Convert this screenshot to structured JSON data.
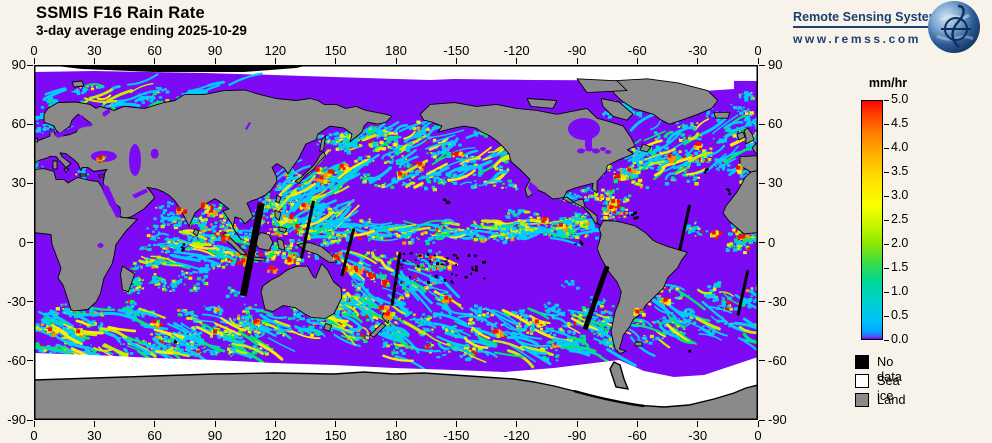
{
  "header": {
    "title": "SSMIS F16 Rain Rate",
    "subtitle": "3-day average ending 2025-10-29"
  },
  "logo": {
    "brand": "Remote Sensing Systems",
    "url": "www.remss.com",
    "brand_color": "#1d3f72"
  },
  "axes": {
    "lon_labels": [
      "0",
      "30",
      "60",
      "90",
      "120",
      "150",
      "180",
      "-150",
      "-120",
      "-90",
      "-60",
      "-30",
      "0"
    ],
    "lat_labels": [
      "90",
      "60",
      "30",
      "0",
      "-30",
      "-60",
      "-90"
    ]
  },
  "colorbar": {
    "unit": "mm/hr",
    "min": 0.0,
    "max": 5.0,
    "tick_labels": [
      "5.0",
      "4.5",
      "4.0",
      "3.5",
      "3.0",
      "2.5",
      "2.0",
      "1.5",
      "1.0",
      "0.5",
      "0.0"
    ],
    "stops": [
      [
        0,
        "#f80400"
      ],
      [
        6,
        "#ff4200"
      ],
      [
        14,
        "#ff8200"
      ],
      [
        24,
        "#ffb800"
      ],
      [
        34,
        "#ffe400"
      ],
      [
        44,
        "#fbff00"
      ],
      [
        52,
        "#c8f500"
      ],
      [
        60,
        "#8ce800"
      ],
      [
        68,
        "#3cdc46"
      ],
      [
        76,
        "#00d795"
      ],
      [
        84,
        "#00d2cd"
      ],
      [
        92,
        "#00c2f8"
      ],
      [
        97,
        "#00a6ff"
      ],
      [
        99,
        "#4b50ff"
      ],
      [
        100,
        "#7a00f0"
      ]
    ]
  },
  "legend": [
    {
      "label": "No data",
      "color": "#000000"
    },
    {
      "label": "Sea ice",
      "color": "#ffffff"
    },
    {
      "label": "Land",
      "color": "#8a8a8a"
    }
  ],
  "map": {
    "colors": {
      "ocean": "#7d0af5",
      "land": "#8a8a8a",
      "ice": "#ffffff",
      "nodata": "#000000",
      "frame": "#000000"
    },
    "rain_palette": [
      "#00ccff",
      "#00e673",
      "#c3f000",
      "#ffec00",
      "#ff9100",
      "#f50f00"
    ],
    "regions": [
      [
        135,
        2,
        275,
        11,
        420,
        2,
        1,
        0
      ],
      [
        325,
        2,
        360,
        9,
        90,
        1,
        0,
        0
      ],
      [
        340,
        -6,
        360,
        4,
        50,
        1,
        0,
        0
      ],
      [
        52,
        -10,
        100,
        6,
        200,
        1,
        1,
        -10
      ],
      [
        78,
        4,
        98,
        19,
        130,
        2,
        0,
        0
      ],
      [
        58,
        6,
        76,
        19,
        70,
        0,
        0,
        0
      ],
      [
        118,
        4,
        152,
        36,
        360,
        2,
        1,
        35
      ],
      [
        148,
        28,
        236,
        57,
        380,
        1,
        1,
        25
      ],
      [
        293,
        32,
        360,
        61,
        330,
        1,
        1,
        30
      ],
      [
        278,
        13,
        294,
        27,
        110,
        2,
        0,
        0
      ],
      [
        283,
        29,
        302,
        41,
        90,
        2,
        0,
        0
      ],
      [
        150,
        -32,
        205,
        -4,
        240,
        2,
        1,
        -35
      ],
      [
        14,
        -56,
        118,
        -33,
        470,
        1,
        1,
        -20
      ],
      [
        172,
        -58,
        287,
        -33,
        470,
        1,
        1,
        -20
      ],
      [
        295,
        -50,
        360,
        -21,
        240,
        1,
        1,
        -25
      ],
      [
        0,
        -55,
        20,
        -33,
        120,
        1,
        1,
        -20
      ],
      [
        148,
        -48,
        180,
        -27,
        180,
        2,
        1,
        -30
      ],
      [
        98,
        -12,
        152,
        4,
        200,
        2,
        0,
        0
      ],
      [
        0,
        31,
        37,
        45,
        34,
        1,
        0,
        0
      ],
      [
        150,
        44,
        200,
        61,
        130,
        1,
        0,
        0
      ],
      [
        5,
        68,
        110,
        80,
        150,
        0,
        1,
        10
      ],
      [
        230,
        4,
        280,
        15,
        170,
        1,
        0,
        0
      ],
      [
        0,
        55,
        16,
        74,
        60,
        0,
        0,
        0
      ],
      [
        266,
        51,
        283,
        62,
        40,
        0,
        0,
        0
      ],
      [
        285,
        63,
        305,
        75,
        60,
        0,
        0,
        0
      ],
      [
        140,
        45,
        156,
        58,
        40,
        0,
        0,
        0
      ],
      [
        262,
        19,
        279,
        29,
        40,
        0,
        0,
        0
      ],
      [
        335,
        62,
        360,
        78,
        70,
        0,
        0,
        0
      ],
      [
        115,
        -45,
        148,
        -33,
        90,
        1,
        1,
        -20
      ],
      [
        35,
        -30,
        55,
        -12,
        60,
        1,
        0,
        0
      ],
      [
        105,
        5,
        120,
        25,
        80,
        1,
        0,
        0
      ],
      [
        55,
        -25,
        100,
        -8,
        120,
        1,
        0,
        0
      ],
      [
        150,
        -33,
        285,
        -20,
        80,
        0,
        0,
        0
      ]
    ],
    "hotspots": [
      [
        287,
        18
      ],
      [
        288,
        21
      ],
      [
        290,
        34
      ],
      [
        296,
        37
      ],
      [
        128,
        13
      ],
      [
        134,
        19
      ],
      [
        131,
        8
      ],
      [
        143,
        33
      ],
      [
        147,
        36
      ],
      [
        153,
        39
      ],
      [
        141,
        37
      ],
      [
        160,
        -13
      ],
      [
        167,
        -16
      ],
      [
        174,
        -20
      ],
      [
        176,
        -36
      ],
      [
        173,
        -33
      ],
      [
        314,
        -29
      ],
      [
        33,
        43
      ],
      [
        262,
        9
      ],
      [
        254,
        12
      ],
      [
        88,
        16
      ],
      [
        84,
        19
      ],
      [
        72,
        17
      ],
      [
        8,
        -44
      ],
      [
        22,
        -45
      ],
      [
        104,
        -9
      ],
      [
        127,
        -9
      ],
      [
        150,
        -7
      ],
      [
        155,
        -13
      ],
      [
        316,
        44
      ],
      [
        330,
        50
      ],
      [
        350,
        38
      ],
      [
        182,
        35
      ],
      [
        192,
        40
      ],
      [
        210,
        45
      ],
      [
        352,
        3
      ],
      [
        338,
        5
      ],
      [
        300,
        -35
      ],
      [
        60,
        -40
      ],
      [
        90,
        -45
      ],
      [
        110,
        -40
      ],
      [
        230,
        -45
      ],
      [
        250,
        -40
      ],
      [
        205,
        -28
      ],
      [
        94,
        3
      ],
      [
        118,
        -13
      ]
    ],
    "swaths": [
      [
        113,
        20,
        104,
        -27,
        7
      ],
      [
        139,
        21,
        133,
        -8,
        3
      ],
      [
        159,
        7,
        153,
        -17,
        3
      ],
      [
        182,
        -5,
        178,
        -32,
        3
      ],
      [
        326,
        19,
        321,
        -4,
        3
      ],
      [
        285,
        -12,
        274,
        -44,
        5
      ],
      [
        355,
        -14,
        350,
        -37,
        3
      ]
    ],
    "island_specks": [
      [
        182,
        -4,
        225,
        -20,
        40
      ],
      [
        203,
        19,
        207,
        23,
        4
      ],
      [
        73,
        0,
        74,
        -4,
        5
      ],
      [
        295,
        12,
        301,
        16,
        6
      ],
      [
        268,
        -1,
        272,
        1,
        3
      ],
      [
        324,
        -54,
        326,
        -55,
        2
      ],
      [
        69,
        -49,
        70,
        -50,
        2
      ],
      [
        344,
        25,
        347,
        28,
        3
      ],
      [
        332,
        36,
        335,
        38,
        3
      ]
    ]
  }
}
